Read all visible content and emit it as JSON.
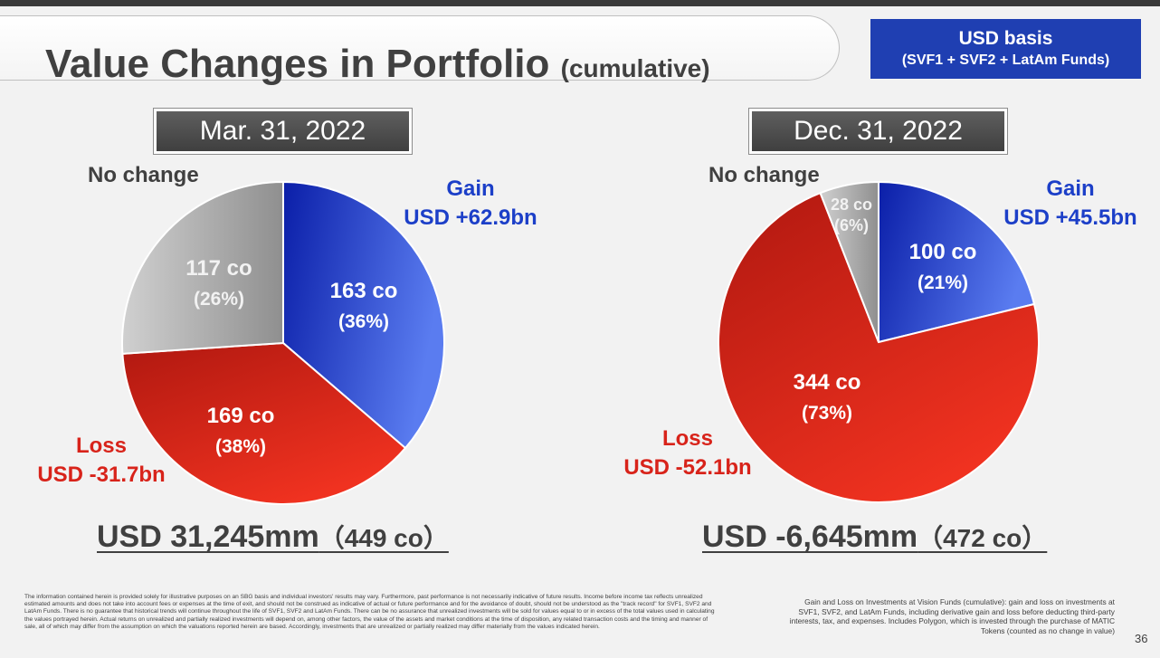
{
  "header": {
    "title": "Value Changes in Portfolio",
    "title_suffix": "(cumulative)",
    "basis_line1": "USD basis",
    "basis_line2": "(SVF1 + SVF2 + LatAm Funds)"
  },
  "colors": {
    "gain": "#1f3fc4",
    "loss": "#d8231a",
    "no_change": "#b4b4b4",
    "header_box": "#1f3fb2"
  },
  "chart_data": [
    {
      "type": "pie",
      "title": "Mar. 31, 2022",
      "categories": [
        "Gain",
        "Loss",
        "No change"
      ],
      "values": [
        163,
        169,
        117
      ],
      "percent_labels": [
        "(36%)",
        "(38%)",
        "(26%)"
      ],
      "count_labels": [
        "163 co",
        "169 co",
        "117 co"
      ],
      "category_labels": {
        "gain": "Gain",
        "loss": "Loss",
        "no_change": "No change"
      },
      "amounts": {
        "gain": "USD +62.9bn",
        "loss": "USD -31.7bn"
      },
      "total_value": "USD 31,245mm",
      "total_count": "（449 co）"
    },
    {
      "type": "pie",
      "title": "Dec. 31, 2022",
      "categories": [
        "Gain",
        "Loss",
        "No change"
      ],
      "values": [
        100,
        344,
        28
      ],
      "percent_labels": [
        "(21%)",
        "(73%)",
        "(6%)"
      ],
      "count_labels": [
        "100 co",
        "344 co",
        "28 co"
      ],
      "category_labels": {
        "gain": "Gain",
        "loss": "Loss",
        "no_change": "No change"
      },
      "amounts": {
        "gain": "USD +45.5bn",
        "loss": "USD -52.1bn"
      },
      "total_value": "USD -6,645mm",
      "total_count": "（472 co）"
    }
  ],
  "footer": {
    "disclaimer": "The information contained herein is provided solely for illustrative purposes on an SBG basis and individual investors' results may vary. Furthermore, past performance is not necessarily indicative of future results. Income before income tax reflects unrealized estimated amounts and does not take into account fees or expenses at the time of exit, and should not be construed as indicative of actual or future performance and for the avoidance of doubt, should not be understood as the \"track record\" for SVF1, SVF2 and LatAm Funds. There is no guarantee that historical trends will continue throughout the life of SVF1, SVF2 and LatAm Funds. There can be no assurance that unrealized investments will be sold for values equal to or in excess of the total values used in calculating the values portrayed herein. Actual returns on unrealized and partially realized investments will depend on, among other factors, the value of the assets and market conditions at the time of disposition, any related transaction costs and the timing and manner of sale, all of which may differ from the assumption on which the valuations reported herein are based. Accordingly, investments that are unrealized or partially realized may differ materially from the values indicated herein.",
    "footnote": "Gain and Loss on Investments at Vision Funds (cumulative): gain and loss on investments at SVF1, SVF2, and LatAm Funds, including derivative gain and loss before deducting third-party interests, tax, and expenses. Includes Polygon, which is invested through the purchase of MATIC Tokens (counted as no change in value)",
    "page_number": "36"
  }
}
